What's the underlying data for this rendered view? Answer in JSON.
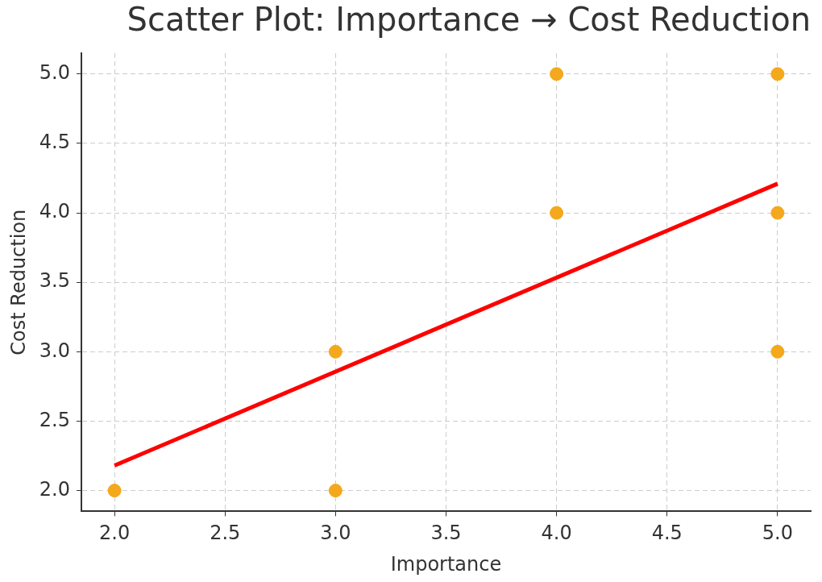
{
  "chart_data": {
    "type": "scatter",
    "title": "Scatter Plot: Importance → Cost Reduction",
    "xlabel": "Importance",
    "ylabel": "Cost Reduction",
    "series": [
      {
        "type": "scatter",
        "color": "#f4a81c",
        "marker": "circle",
        "x": [
          2,
          3,
          3,
          4,
          4,
          5,
          5,
          5
        ],
        "values": [
          2,
          2,
          3,
          4,
          5,
          5,
          4,
          3
        ]
      },
      {
        "type": "line",
        "color": "#ff0000",
        "line_style": "solid",
        "marker": "none",
        "x": [
          2,
          5
        ],
        "values": [
          2.18,
          4.21
        ]
      }
    ],
    "xlim": [
      1.85,
      5.15
    ],
    "ylim": [
      1.85,
      5.15
    ],
    "xticks": [
      {
        "value": 2,
        "label": "2.0"
      },
      {
        "value": 2.5,
        "label": "2.5"
      },
      {
        "value": 3,
        "label": "3.0"
      },
      {
        "value": 3.5,
        "label": "3.5"
      },
      {
        "value": 4,
        "label": "4.0"
      },
      {
        "value": 4.5,
        "label": "4.5"
      },
      {
        "value": 5,
        "label": "5.0"
      }
    ],
    "yticks": [
      {
        "value": 2,
        "label": "2.0"
      },
      {
        "value": 2.5,
        "label": "2.5"
      },
      {
        "value": 3,
        "label": "3.0"
      },
      {
        "value": 3.5,
        "label": "3.5"
      },
      {
        "value": 4,
        "label": "4.0"
      },
      {
        "value": 4.5,
        "label": "4.5"
      },
      {
        "value": 5,
        "label": "5.0"
      }
    ],
    "grid": true,
    "legend": false
  }
}
